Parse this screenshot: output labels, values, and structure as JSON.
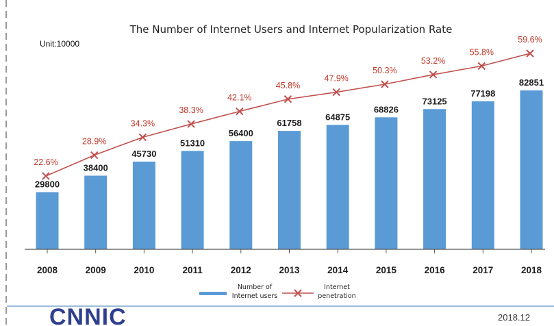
{
  "chart_data": {
    "type": "bar",
    "title": "The Number of Internet Users  and Internet Popularization Rate",
    "unit_label": "Unit:10000",
    "categories": [
      "2008",
      "2009",
      "2010",
      "2011",
      "2012",
      "2013",
      "2014",
      "2015",
      "2016",
      "2017",
      "2018"
    ],
    "series": [
      {
        "name": "Number of Internet users",
        "type": "bar",
        "values": [
          29800,
          38400,
          45730,
          51310,
          56400,
          61758,
          64875,
          68826,
          73125,
          77198,
          82851
        ],
        "labels": [
          "29800",
          "38400",
          "45730",
          "51310",
          "56400",
          "61758",
          "64875",
          "68826",
          "73125",
          "77198",
          "82851"
        ]
      },
      {
        "name": "Internet penetration",
        "type": "line",
        "marker": "x",
        "values": [
          22.6,
          28.9,
          34.3,
          38.3,
          42.1,
          45.8,
          47.9,
          50.3,
          53.2,
          55.8,
          59.6
        ],
        "labels": [
          "22.6%",
          "28.9%",
          "34.3%",
          "38.3%",
          "42.1%",
          "45.8%",
          "47.9%",
          "50.3%",
          "53.2%",
          "55.8%",
          "59.6%"
        ]
      }
    ],
    "legend_position": "bottom-center",
    "grid": false,
    "colors": {
      "bar": "#5b9bd5",
      "line": "#c0504d",
      "rate_text": "#c0392b",
      "axis": "#555555"
    }
  },
  "legend": {
    "users_line1": "Number of",
    "users_line2": "Internet users",
    "rate_line1": "Internet",
    "rate_line2": "penetration"
  },
  "footer": {
    "logo": "CNNIC",
    "date": "2018.12"
  }
}
